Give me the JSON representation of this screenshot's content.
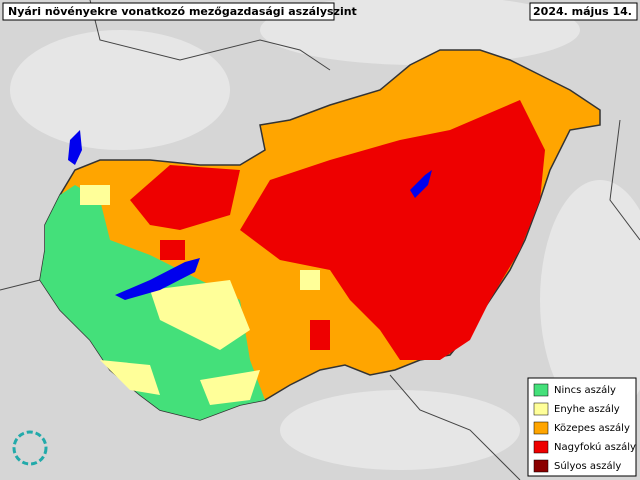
{
  "title": "Nyári növényekre vonatkozó mezőgazdasági aszályszint",
  "date": "2024. május 14.",
  "legend": [
    {
      "label": "Nincs aszály",
      "color": "#44e07a"
    },
    {
      "label": "Enyhe aszály",
      "color": "#ffff99"
    },
    {
      "label": "Közepes aszály",
      "color": "#ffa500"
    },
    {
      "label": "Nagyfokú aszály",
      "color": "#ee0000"
    },
    {
      "label": "Súlyos aszály",
      "color": "#8b0000"
    }
  ]
}
